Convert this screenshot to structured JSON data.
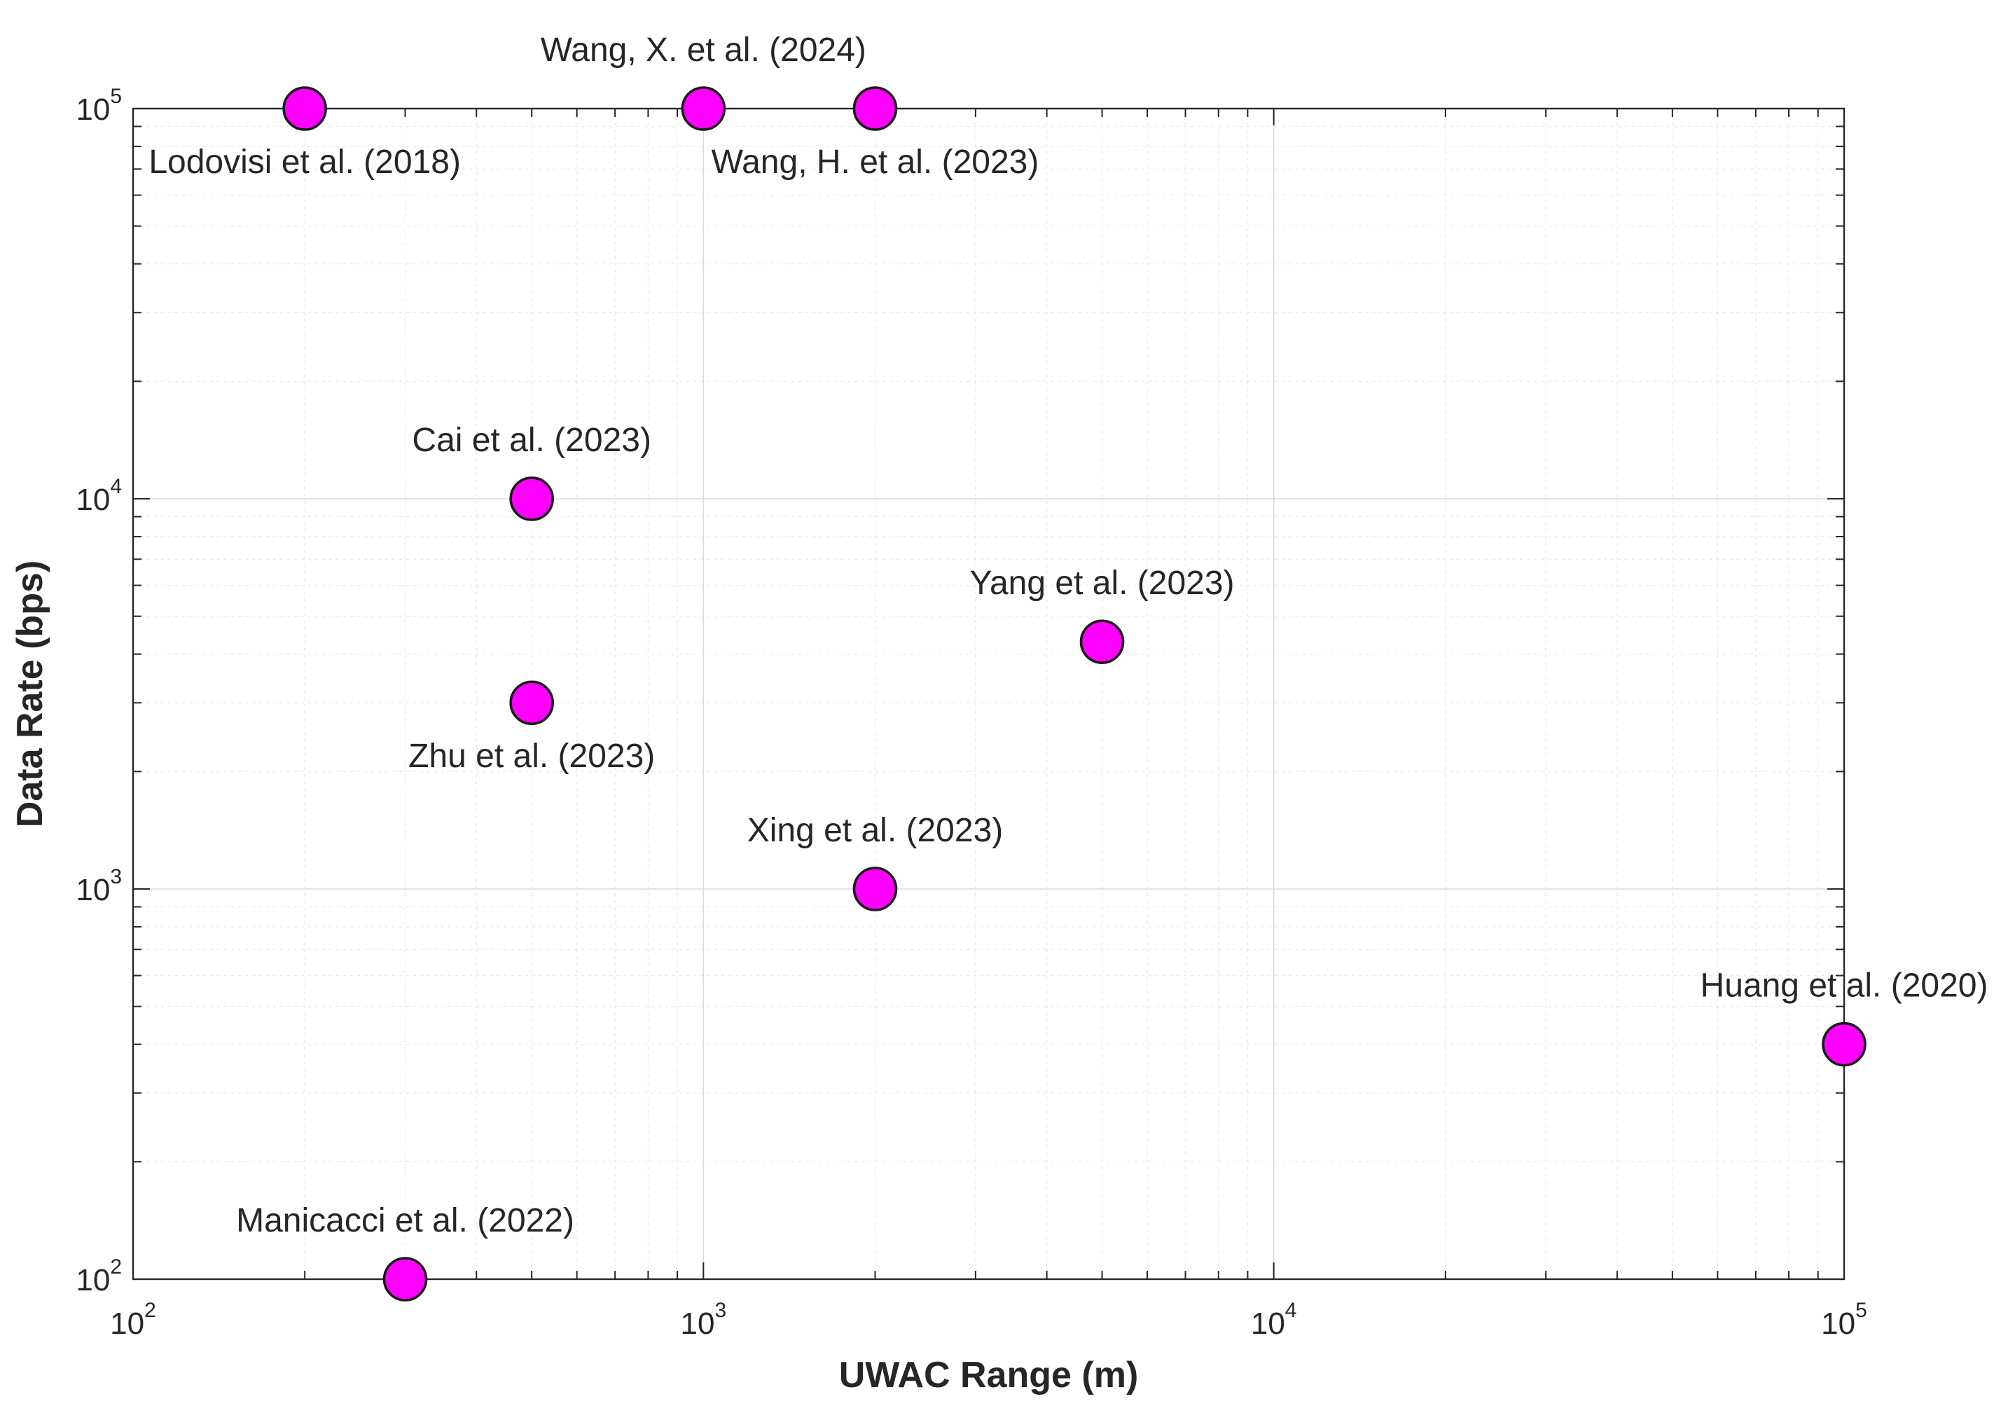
{
  "chart_data": {
    "type": "scatter",
    "title": "",
    "xlabel": "UWAC Range (m)",
    "ylabel": "Data Rate (bps)",
    "xscale": "log",
    "yscale": "log",
    "xlim": [
      100,
      100000
    ],
    "ylim": [
      100,
      100000
    ],
    "grid": true,
    "marker_color": "#ff00ff",
    "marker_edge_color": "#1a1a1a",
    "x_ticks": [
      {
        "base": "10",
        "exp": "2"
      },
      {
        "base": "10",
        "exp": "3"
      },
      {
        "base": "10",
        "exp": "4"
      },
      {
        "base": "10",
        "exp": "5"
      }
    ],
    "y_ticks": [
      {
        "base": "10",
        "exp": "2"
      },
      {
        "base": "10",
        "exp": "3"
      },
      {
        "base": "10",
        "exp": "4"
      },
      {
        "base": "10",
        "exp": "5"
      }
    ],
    "points": [
      {
        "label": "Lodovisi et al. (2018)",
        "x": 200,
        "y": 100000,
        "label_pos": "below"
      },
      {
        "label": "Wang, X. et al. (2024)",
        "x": 1000,
        "y": 100000,
        "label_pos": "above"
      },
      {
        "label": "Wang, H. et al. (2023)",
        "x": 2000,
        "y": 100000,
        "label_pos": "below"
      },
      {
        "label": "Cai et al. (2023)",
        "x": 500,
        "y": 10000,
        "label_pos": "above"
      },
      {
        "label": "Zhu et al. (2023)",
        "x": 500,
        "y": 3000,
        "label_pos": "below"
      },
      {
        "label": "Yang et al. (2023)",
        "x": 5000,
        "y": 4300,
        "label_pos": "above"
      },
      {
        "label": "Xing et al. (2023)",
        "x": 2000,
        "y": 1000,
        "label_pos": "above"
      },
      {
        "label": "Huang et al. (2020)",
        "x": 100000,
        "y": 400,
        "label_pos": "above"
      },
      {
        "label": "Manicacci et al. (2022)",
        "x": 300,
        "y": 100,
        "label_pos": "above"
      }
    ]
  }
}
